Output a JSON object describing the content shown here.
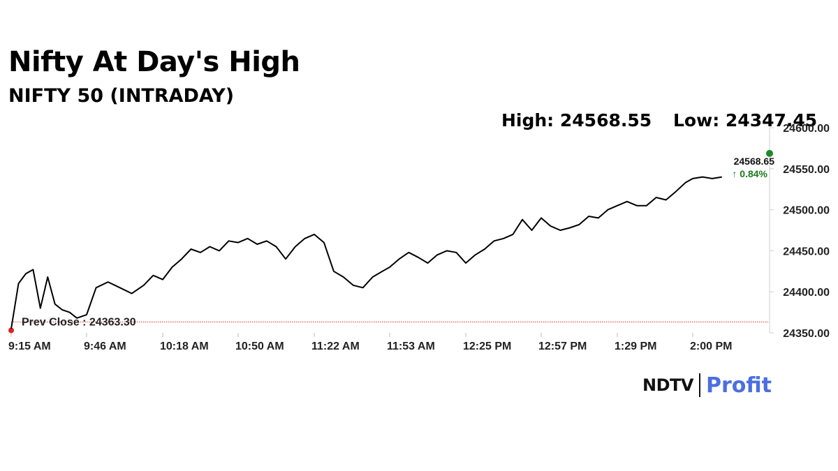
{
  "title": "Nifty At Day's High",
  "subtitle": "NIFTY 50 (INTRADAY)",
  "stats": {
    "high": "High: 24568.55",
    "low": "Low: 24347.45"
  },
  "logo": {
    "ndtv": "NDTV",
    "profit": "Profit"
  },
  "colors": {
    "line": "#000000",
    "prev_close": "#d32f2f",
    "end_dot": "#1a8a2a",
    "change": "#1a7a1a"
  },
  "chart_data": {
    "type": "line",
    "title": "Nifty At Day's High",
    "subtitle": "NIFTY 50 (INTRADAY)",
    "xlabel": "",
    "ylabel": "",
    "x_tick_labels": [
      "9:15 AM",
      "9:46 AM",
      "10:18 AM",
      "10:50 AM",
      "11:22 AM",
      "11:53 AM",
      "12:25 PM",
      "12:57 PM",
      "1:29 PM",
      "2:00 PM"
    ],
    "y_tick_labels": [
      "24350.00",
      "24400.00",
      "24450.00",
      "24500.00",
      "24550.00",
      "24600.00"
    ],
    "ylim": [
      24350,
      24600
    ],
    "prev_close": {
      "label": "Prev Close : 24363.30",
      "value": 24363.3
    },
    "last": {
      "value_label": "24568.65",
      "change_label": "↑ 0.84%",
      "value": 24568.65
    },
    "grid": false,
    "series": [
      {
        "x": [
          "9:15 AM",
          "9:18 AM",
          "9:21 AM",
          "9:24 AM",
          "9:27 AM",
          "9:30 AM",
          "9:33 AM",
          "9:36 AM",
          "9:39 AM",
          "9:42 AM",
          "9:46 AM",
          "9:50 AM",
          "9:55 AM",
          "10:00 AM",
          "10:05 AM",
          "10:10 AM",
          "10:14 AM",
          "10:18 AM",
          "10:22 AM",
          "10:26 AM",
          "10:30 AM",
          "10:34 AM",
          "10:38 AM",
          "10:42 AM",
          "10:46 AM",
          "10:50 AM",
          "10:54 AM",
          "10:58 AM",
          "11:02 AM",
          "11:06 AM",
          "11:10 AM",
          "11:14 AM",
          "11:18 AM",
          "11:22 AM",
          "11:26 AM",
          "11:30 AM",
          "11:34 AM",
          "11:38 AM",
          "11:42 AM",
          "11:46 AM",
          "11:50 AM",
          "11:53 AM",
          "11:57 AM",
          "12:01 PM",
          "12:05 PM",
          "12:09 PM",
          "12:13 PM",
          "12:17 PM",
          "12:21 PM",
          "12:25 PM",
          "12:29 PM",
          "12:33 PM",
          "12:37 PM",
          "12:41 PM",
          "12:45 PM",
          "12:49 PM",
          "12:53 PM",
          "12:57 PM",
          "1:01 PM",
          "1:05 PM",
          "1:09 PM",
          "1:13 PM",
          "1:17 PM",
          "1:21 PM",
          "1:25 PM",
          "1:29 PM",
          "1:33 PM",
          "1:37 PM",
          "1:41 PM",
          "1:45 PM",
          "1:49 PM",
          "1:53 PM",
          "1:57 PM",
          "2:00 PM",
          "2:04 PM",
          "2:08 PM",
          "2:12 PM"
        ],
        "values": [
          24355,
          24410,
          24422,
          24427,
          24380,
          24418,
          24385,
          24378,
          24375,
          24368,
          24372,
          24405,
          24412,
          24405,
          24398,
          24408,
          24420,
          24415,
          24430,
          24440,
          24452,
          24448,
          24455,
          24450,
          24462,
          24460,
          24465,
          24458,
          24462,
          24455,
          24440,
          24455,
          24465,
          24470,
          24460,
          24425,
          24418,
          24408,
          24405,
          24418,
          24425,
          24430,
          24440,
          24448,
          24442,
          24435,
          24445,
          24450,
          24448,
          24435,
          24445,
          24452,
          24462,
          24465,
          24470,
          24488,
          24475,
          24490,
          24480,
          24475,
          24478,
          24482,
          24492,
          24490,
          24500,
          24505,
          24510,
          24505,
          24505,
          24515,
          24512,
          24522,
          24533,
          24538,
          24540,
          24538,
          24540
        ]
      }
    ]
  }
}
